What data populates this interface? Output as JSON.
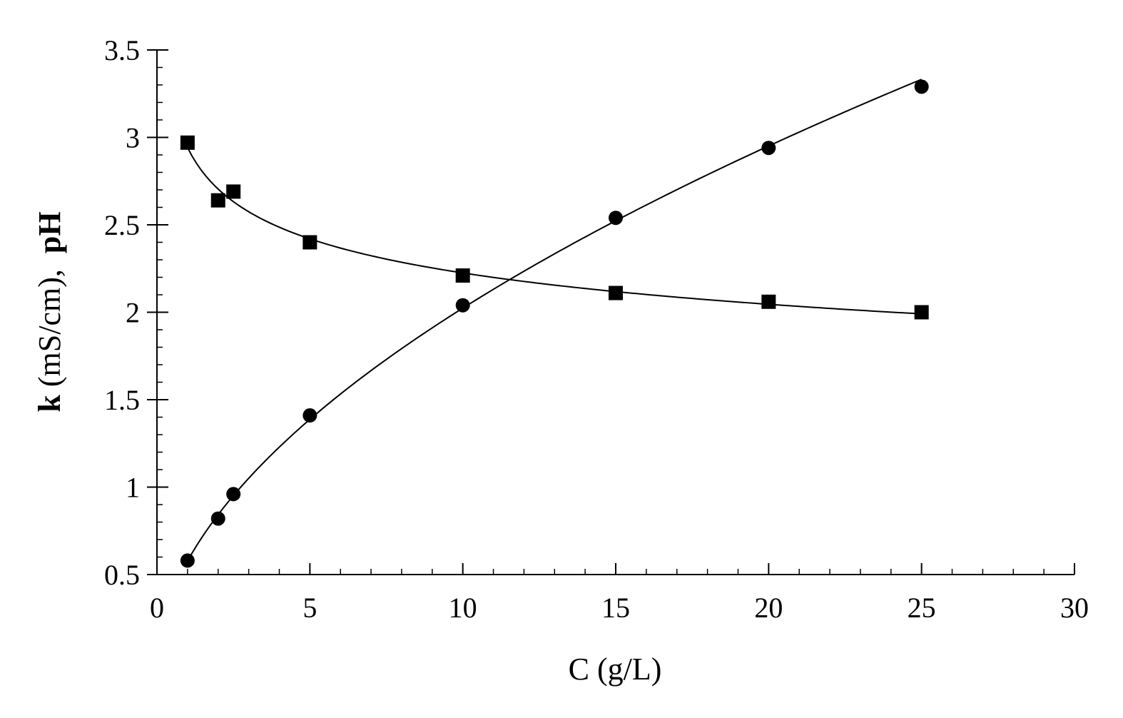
{
  "chart_data": {
    "type": "scatter",
    "title": "",
    "xlabel": "C (g/L)",
    "ylabel_parts": [
      "k",
      " (mS/cm),  ",
      "pH"
    ],
    "xlim": [
      0,
      30
    ],
    "ylim": [
      0.5,
      3.5
    ],
    "x_ticks": [
      0,
      5,
      10,
      15,
      20,
      25,
      30
    ],
    "y_ticks": [
      0.5,
      1,
      1.5,
      2,
      2.5,
      3,
      3.5
    ],
    "x_tick_labels": [
      "0",
      "5",
      "10",
      "15",
      "20",
      "25",
      "30"
    ],
    "y_tick_labels": [
      "0.5",
      "1",
      "1.5",
      "2",
      "2.5",
      "3",
      "3.5"
    ],
    "x_minor_step": 1,
    "y_minor_step": 0.1,
    "grid": false,
    "legend": "none",
    "series": [
      {
        "marker": "circle",
        "fit": "power-curve",
        "x": [
          1,
          2,
          2.5,
          5,
          10,
          15,
          20,
          25
        ],
        "y": [
          0.58,
          0.82,
          0.96,
          1.41,
          2.04,
          2.54,
          2.94,
          3.29
        ]
      },
      {
        "marker": "square",
        "fit": "power-curve",
        "x": [
          1,
          2,
          2.5,
          5,
          10,
          15,
          20,
          25
        ],
        "y": [
          2.97,
          2.64,
          2.69,
          2.4,
          2.21,
          2.11,
          2.06,
          2.0
        ]
      }
    ]
  }
}
